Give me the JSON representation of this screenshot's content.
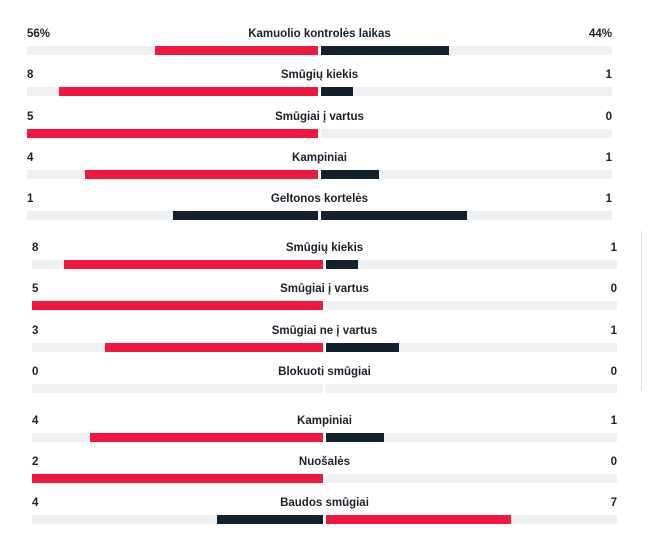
{
  "colors": {
    "lead": "#f0183c",
    "trail": "#11222e",
    "track": "#eef0f3"
  },
  "summary": [
    {
      "label": "Kamuolio kontrolės laikas",
      "home": "56%",
      "away": "44%",
      "home_frac": 0.56,
      "away_frac": 0.44
    },
    {
      "label": "Smūgių kiekis",
      "home": "8",
      "away": "1",
      "home_frac": 0.889,
      "away_frac": 0.111
    },
    {
      "label": "Smūgiai į vartus",
      "home": "5",
      "away": "0",
      "home_frac": 1.0,
      "away_frac": 0.0
    },
    {
      "label": "Kampiniai",
      "home": "4",
      "away": "1",
      "home_frac": 0.8,
      "away_frac": 0.2
    },
    {
      "label": "Geltonos kortelės",
      "home": "1",
      "away": "1",
      "home_frac": 0.5,
      "away_frac": 0.5
    }
  ],
  "shots": [
    {
      "label": "Smūgių kiekis",
      "home": "8",
      "away": "1",
      "home_frac": 0.889,
      "away_frac": 0.111
    },
    {
      "label": "Smūgiai į vartus",
      "home": "5",
      "away": "0",
      "home_frac": 1.0,
      "away_frac": 0.0
    },
    {
      "label": "Smūgiai ne į vartus",
      "home": "3",
      "away": "1",
      "home_frac": 0.75,
      "away_frac": 0.25
    },
    {
      "label": "Blokuoti smūgiai",
      "home": "0",
      "away": "0",
      "home_frac": 0.0,
      "away_frac": 0.0
    }
  ],
  "other": [
    {
      "label": "Kampiniai",
      "home": "4",
      "away": "1",
      "home_frac": 0.8,
      "away_frac": 0.2
    },
    {
      "label": "Nuošalės",
      "home": "2",
      "away": "0",
      "home_frac": 1.0,
      "away_frac": 0.0
    },
    {
      "label": "Baudos smūgiai",
      "home": "4",
      "away": "7",
      "home_frac": 0.364,
      "away_frac": 0.636
    }
  ]
}
